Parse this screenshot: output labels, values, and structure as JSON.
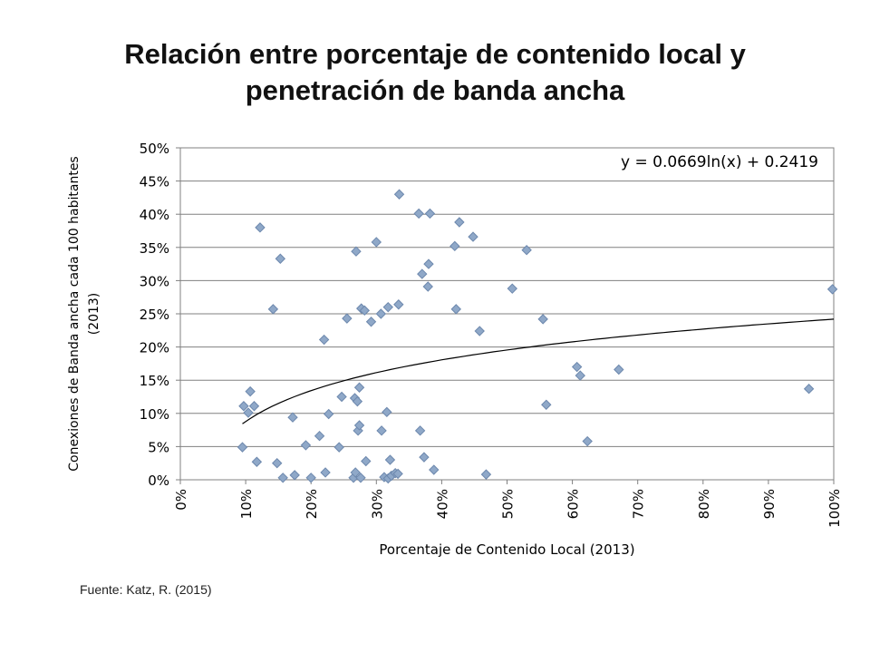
{
  "title_line1": "Relación entre porcentaje de contenido local y",
  "title_line2": "penetración de banda ancha",
  "source": "Fuente: Katz, R. (2015)",
  "colors": {
    "marker": "#8fa8c8",
    "marker_stroke": "#6d88ad",
    "grid": "#808080",
    "trend": "#000000"
  },
  "chart_data": {
    "type": "scatter",
    "xlabel": "Porcentaje de Contenido Local (2013)",
    "ylabel": "Conexiones de Banda ancha cada 100 habitantes (2013)",
    "equation": "y = 0.0669ln(x) + 0.2419",
    "xlim": [
      0,
      1
    ],
    "ylim": [
      0,
      0.5
    ],
    "x_ticks": [
      "0%",
      "10%",
      "20%",
      "30%",
      "40%",
      "50%",
      "60%",
      "70%",
      "80%",
      "90%",
      "100%"
    ],
    "y_ticks": [
      "0%",
      "5%",
      "10%",
      "15%",
      "20%",
      "25%",
      "30%",
      "35%",
      "40%",
      "45%",
      "50%"
    ],
    "grid": "horizontal",
    "trendline": {
      "type": "logarithmic",
      "a": 0.0669,
      "b": 0.2419,
      "x_range": [
        0.095,
        1.0
      ]
    },
    "points": [
      {
        "x": 0.095,
        "y": 0.049
      },
      {
        "x": 0.097,
        "y": 0.111
      },
      {
        "x": 0.104,
        "y": 0.101
      },
      {
        "x": 0.107,
        "y": 0.133
      },
      {
        "x": 0.113,
        "y": 0.111
      },
      {
        "x": 0.117,
        "y": 0.027
      },
      {
        "x": 0.122,
        "y": 0.38
      },
      {
        "x": 0.142,
        "y": 0.257
      },
      {
        "x": 0.148,
        "y": 0.025
      },
      {
        "x": 0.153,
        "y": 0.333
      },
      {
        "x": 0.157,
        "y": 0.003
      },
      {
        "x": 0.172,
        "y": 0.094
      },
      {
        "x": 0.175,
        "y": 0.007
      },
      {
        "x": 0.192,
        "y": 0.052
      },
      {
        "x": 0.2,
        "y": 0.003
      },
      {
        "x": 0.213,
        "y": 0.066
      },
      {
        "x": 0.22,
        "y": 0.211
      },
      {
        "x": 0.222,
        "y": 0.011
      },
      {
        "x": 0.227,
        "y": 0.099
      },
      {
        "x": 0.243,
        "y": 0.049
      },
      {
        "x": 0.247,
        "y": 0.125
      },
      {
        "x": 0.255,
        "y": 0.243
      },
      {
        "x": 0.265,
        "y": 0.003
      },
      {
        "x": 0.267,
        "y": 0.123
      },
      {
        "x": 0.268,
        "y": 0.011
      },
      {
        "x": 0.269,
        "y": 0.344
      },
      {
        "x": 0.271,
        "y": 0.118
      },
      {
        "x": 0.272,
        "y": 0.074
      },
      {
        "x": 0.274,
        "y": 0.082
      },
      {
        "x": 0.274,
        "y": 0.139
      },
      {
        "x": 0.276,
        "y": 0.003
      },
      {
        "x": 0.277,
        "y": 0.258
      },
      {
        "x": 0.282,
        "y": 0.255
      },
      {
        "x": 0.284,
        "y": 0.028
      },
      {
        "x": 0.292,
        "y": 0.238
      },
      {
        "x": 0.3,
        "y": 0.358
      },
      {
        "x": 0.307,
        "y": 0.25
      },
      {
        "x": 0.308,
        "y": 0.074
      },
      {
        "x": 0.312,
        "y": 0.004
      },
      {
        "x": 0.316,
        "y": 0.102
      },
      {
        "x": 0.318,
        "y": 0.002
      },
      {
        "x": 0.318,
        "y": 0.26
      },
      {
        "x": 0.321,
        "y": 0.03
      },
      {
        "x": 0.323,
        "y": 0.006
      },
      {
        "x": 0.329,
        "y": 0.01
      },
      {
        "x": 0.333,
        "y": 0.009
      },
      {
        "x": 0.334,
        "y": 0.264
      },
      {
        "x": 0.335,
        "y": 0.43
      },
      {
        "x": 0.365,
        "y": 0.401
      },
      {
        "x": 0.367,
        "y": 0.074
      },
      {
        "x": 0.37,
        "y": 0.31
      },
      {
        "x": 0.373,
        "y": 0.034
      },
      {
        "x": 0.379,
        "y": 0.291
      },
      {
        "x": 0.38,
        "y": 0.325
      },
      {
        "x": 0.382,
        "y": 0.401
      },
      {
        "x": 0.388,
        "y": 0.015
      },
      {
        "x": 0.42,
        "y": 0.352
      },
      {
        "x": 0.422,
        "y": 0.257
      },
      {
        "x": 0.427,
        "y": 0.388
      },
      {
        "x": 0.448,
        "y": 0.366
      },
      {
        "x": 0.458,
        "y": 0.224
      },
      {
        "x": 0.468,
        "y": 0.008
      },
      {
        "x": 0.508,
        "y": 0.288
      },
      {
        "x": 0.53,
        "y": 0.346
      },
      {
        "x": 0.555,
        "y": 0.242
      },
      {
        "x": 0.56,
        "y": 0.113
      },
      {
        "x": 0.607,
        "y": 0.17
      },
      {
        "x": 0.612,
        "y": 0.157
      },
      {
        "x": 0.623,
        "y": 0.058
      },
      {
        "x": 0.671,
        "y": 0.166
      },
      {
        "x": 0.962,
        "y": 0.137
      },
      {
        "x": 0.998,
        "y": 0.287
      }
    ]
  }
}
